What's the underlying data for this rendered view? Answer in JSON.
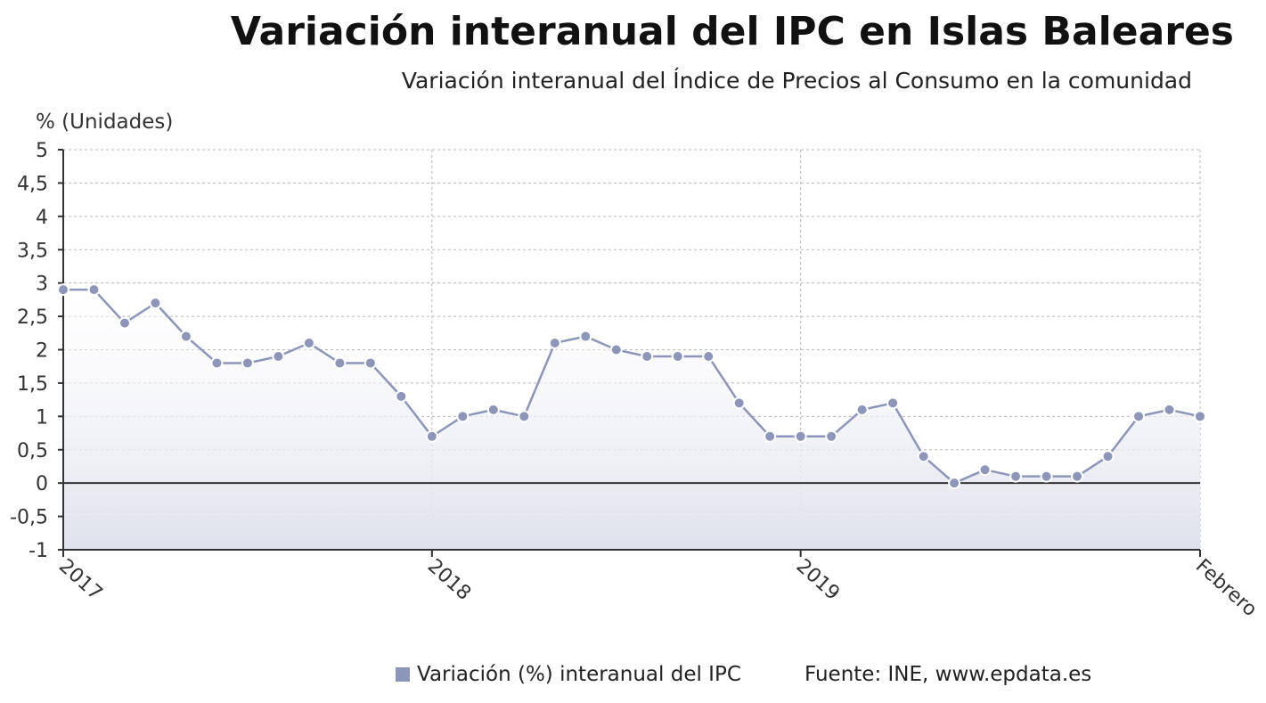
{
  "chart_data": {
    "type": "line",
    "title": "Variación interanual del IPC en Islas Baleares",
    "subtitle": "Variación interanual del Índice de Precios al Consumo en la comunidad",
    "ylabel": "% (Unidades)",
    "ylim": [
      -1,
      5
    ],
    "yticks": [
      "-1",
      "-0,5",
      "0",
      "0,5",
      "1",
      "1,5",
      "2",
      "2,5",
      "3",
      "3,5",
      "4",
      "4,5",
      "5"
    ],
    "xtick_labels": [
      "2017",
      "2018",
      "2019",
      "Febrero"
    ],
    "grid": true,
    "legend_position": "bottom",
    "colors": {
      "series": "#8d96b8",
      "axis": "#333333",
      "grid": "#b8b8b8"
    },
    "series": [
      {
        "name": "Variación (%) interanual del IPC",
        "x": [
          "2017-01",
          "2017-02",
          "2017-03",
          "2017-04",
          "2017-05",
          "2017-06",
          "2017-07",
          "2017-08",
          "2017-09",
          "2017-10",
          "2017-11",
          "2017-12",
          "2018-01",
          "2018-02",
          "2018-03",
          "2018-04",
          "2018-05",
          "2018-06",
          "2018-07",
          "2018-08",
          "2018-09",
          "2018-10",
          "2018-11",
          "2018-12",
          "2019-01",
          "2019-02",
          "2019-03",
          "2019-04",
          "2019-05",
          "2019-06",
          "2019-07",
          "2019-08",
          "2019-09",
          "2019-10",
          "2019-11",
          "2019-12",
          "2020-01",
          "2020-02"
        ],
        "values": [
          2.9,
          2.9,
          2.4,
          2.7,
          2.2,
          1.8,
          1.8,
          1.9,
          2.1,
          1.8,
          1.8,
          1.3,
          0.7,
          1.0,
          1.1,
          1.0,
          2.1,
          2.2,
          2.0,
          1.9,
          1.9,
          1.9,
          1.2,
          0.7,
          0.7,
          0.7,
          1.1,
          1.2,
          0.4,
          0.0,
          0.2,
          0.1,
          0.1,
          0.1,
          0.4,
          1.0,
          1.1,
          1.0
        ]
      }
    ]
  },
  "source": "Fuente: INE, www.epdata.es"
}
